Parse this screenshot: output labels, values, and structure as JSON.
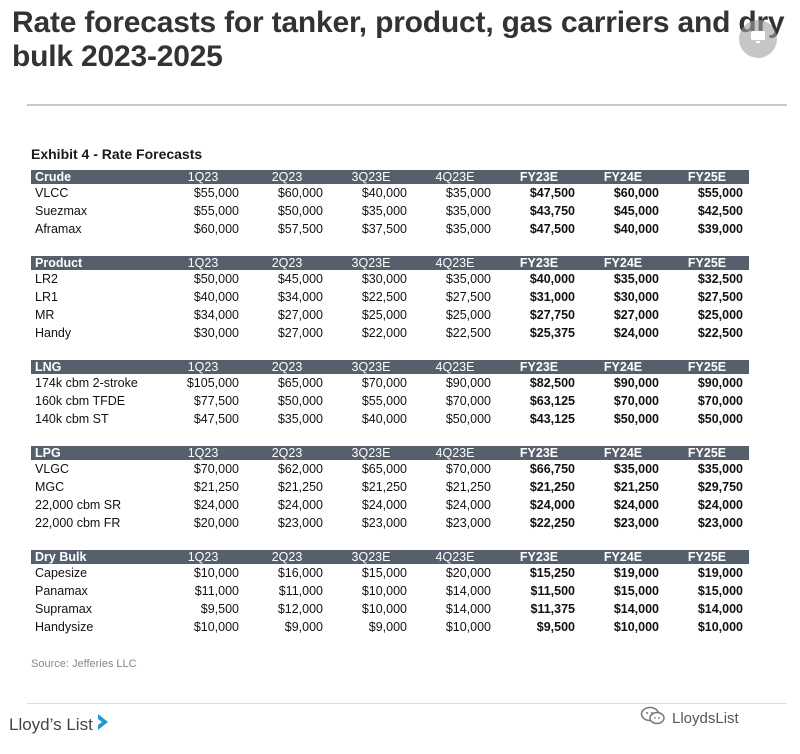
{
  "page": {
    "title_line1": "Rate forecasts for tanker, product, gas carriers and dry",
    "title_line2": "bulk 2023-2025"
  },
  "exhibit": {
    "title": "Exhibit 4 - Rate Forecasts",
    "columns": [
      "1Q23",
      "2Q23",
      "3Q23E",
      "4Q23E",
      "FY23E",
      "FY24E",
      "FY25E"
    ],
    "sections": [
      {
        "name": "Crude",
        "rows": [
          {
            "label": "VLCC",
            "values": [
              "$55,000",
              "$60,000",
              "$40,000",
              "$35,000",
              "$47,500",
              "$60,000",
              "$55,000"
            ]
          },
          {
            "label": "Suezmax",
            "values": [
              "$55,000",
              "$50,000",
              "$35,000",
              "$35,000",
              "$43,750",
              "$45,000",
              "$42,500"
            ]
          },
          {
            "label": "Aframax",
            "values": [
              "$60,000",
              "$57,500",
              "$37,500",
              "$35,000",
              "$47,500",
              "$40,000",
              "$39,000"
            ]
          }
        ]
      },
      {
        "name": "Product",
        "rows": [
          {
            "label": "LR2",
            "values": [
              "$50,000",
              "$45,000",
              "$30,000",
              "$35,000",
              "$40,000",
              "$35,000",
              "$32,500"
            ]
          },
          {
            "label": "LR1",
            "values": [
              "$40,000",
              "$34,000",
              "$22,500",
              "$27,500",
              "$31,000",
              "$30,000",
              "$27,500"
            ]
          },
          {
            "label": "MR",
            "values": [
              "$34,000",
              "$27,000",
              "$25,000",
              "$25,000",
              "$27,750",
              "$27,000",
              "$25,000"
            ]
          },
          {
            "label": "Handy",
            "values": [
              "$30,000",
              "$27,000",
              "$22,000",
              "$22,500",
              "$25,375",
              "$24,000",
              "$22,500"
            ]
          }
        ]
      },
      {
        "name": "LNG",
        "rows": [
          {
            "label": "174k cbm 2-stroke",
            "values": [
              "$105,000",
              "$65,000",
              "$70,000",
              "$90,000",
              "$82,500",
              "$90,000",
              "$90,000"
            ]
          },
          {
            "label": "160k cbm TFDE",
            "values": [
              "$77,500",
              "$50,000",
              "$55,000",
              "$70,000",
              "$63,125",
              "$70,000",
              "$70,000"
            ]
          },
          {
            "label": "140k cbm ST",
            "values": [
              "$47,500",
              "$35,000",
              "$40,000",
              "$50,000",
              "$43,125",
              "$50,000",
              "$50,000"
            ]
          }
        ]
      },
      {
        "name": "LPG",
        "rows": [
          {
            "label": "VLGC",
            "values": [
              "$70,000",
              "$62,000",
              "$65,000",
              "$70,000",
              "$66,750",
              "$35,000",
              "$35,000"
            ]
          },
          {
            "label": "MGC",
            "values": [
              "$21,250",
              "$21,250",
              "$21,250",
              "$21,250",
              "$21,250",
              "$21,250",
              "$29,750"
            ]
          },
          {
            "label": "22,000 cbm SR",
            "values": [
              "$24,000",
              "$24,000",
              "$24,000",
              "$24,000",
              "$24,000",
              "$24,000",
              "$24,000"
            ]
          },
          {
            "label": "22,000 cbm FR",
            "values": [
              "$20,000",
              "$23,000",
              "$23,000",
              "$23,000",
              "$22,250",
              "$23,000",
              "$23,000"
            ]
          }
        ]
      },
      {
        "name": "Dry Bulk",
        "rows": [
          {
            "label": "Capesize",
            "values": [
              "$10,000",
              "$16,000",
              "$15,000",
              "$20,000",
              "$15,250",
              "$19,000",
              "$19,000"
            ]
          },
          {
            "label": "Panamax",
            "values": [
              "$11,000",
              "$11,000",
              "$10,000",
              "$14,000",
              "$11,500",
              "$15,000",
              "$15,000"
            ]
          },
          {
            "label": "Supramax",
            "values": [
              "$9,500",
              "$12,000",
              "$10,000",
              "$14,000",
              "$11,375",
              "$14,000",
              "$14,000"
            ]
          },
          {
            "label": "Handysize",
            "values": [
              "$10,000",
              "$9,000",
              "$9,000",
              "$10,000",
              "$9,500",
              "$10,000",
              "$10,000"
            ]
          }
        ]
      }
    ],
    "source": "Source: Jefferies LLC"
  },
  "footer": {
    "logo_text": "Lloyd’s List",
    "watermark_text": "LloydsList"
  },
  "colors": {
    "header_bg": "#56606c",
    "logo_accent": "#1b9ad6"
  }
}
